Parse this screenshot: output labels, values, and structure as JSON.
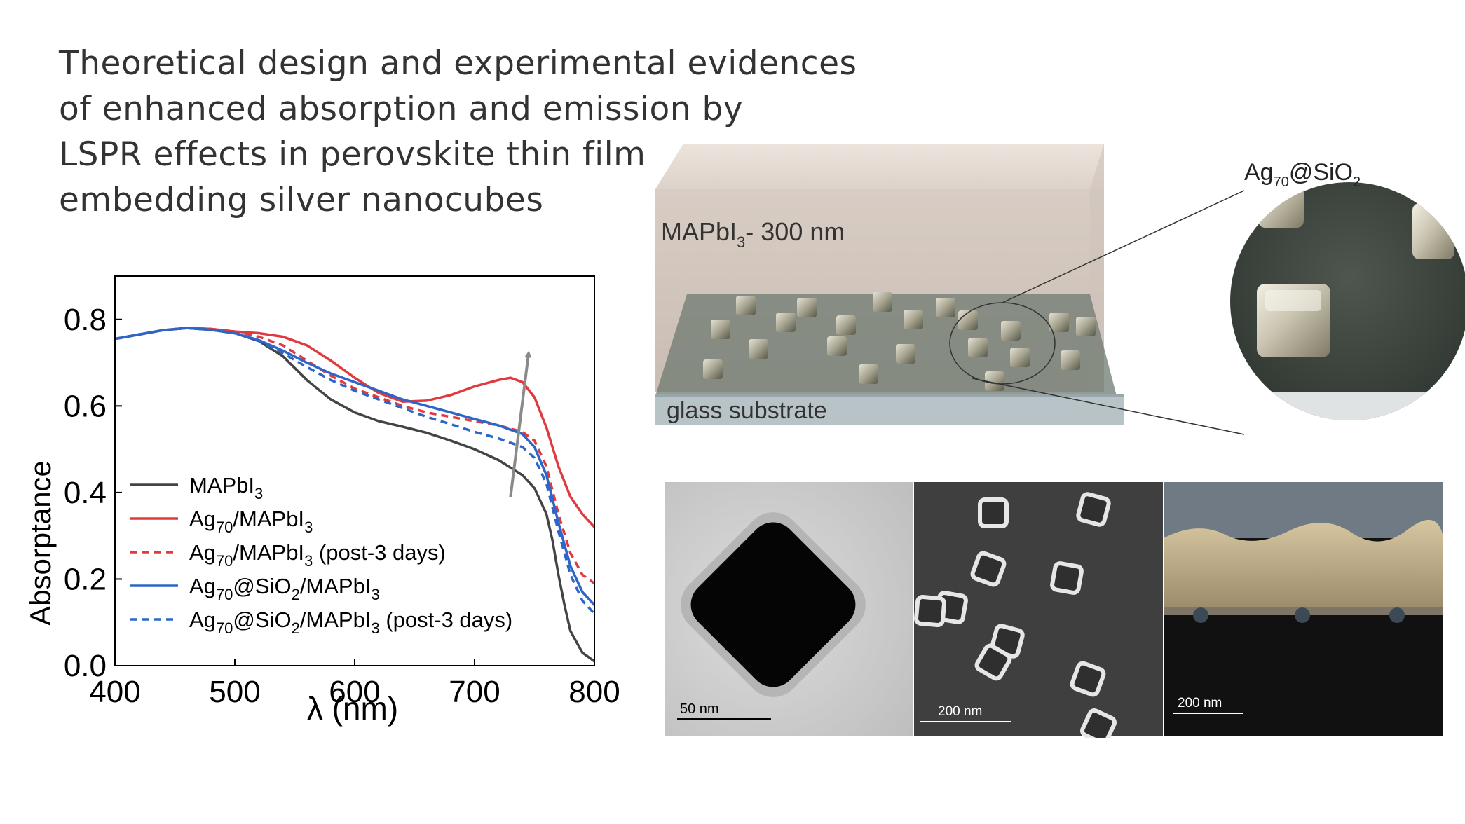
{
  "header": {
    "title_lines": [
      "Theoretical design and experimental evidences",
      "of enhanced absorption and emission by",
      "LSPR effects in perovskite thin film",
      "embedding silver nanocubes"
    ]
  },
  "chart_data": {
    "type": "line",
    "xlabel": "λ (nm)",
    "ylabel": "Absorptance",
    "xlim": [
      400,
      800
    ],
    "ylim": [
      0.0,
      0.9
    ],
    "xticks": [
      400,
      500,
      600,
      700,
      800
    ],
    "yticks": [
      0.0,
      0.2,
      0.4,
      0.6,
      0.8
    ],
    "xtick_labels": [
      "400",
      "500",
      "600",
      "700",
      "800"
    ],
    "ytick_labels": [
      "0.0",
      "0.2",
      "0.4",
      "0.6",
      "0.8"
    ],
    "grid": false,
    "legend_position": "bottom-left",
    "arrow": {
      "from": [
        730,
        0.39
      ],
      "to": [
        745,
        0.72
      ],
      "color": "#8a8a8a"
    },
    "series": [
      {
        "key": "mapbi3",
        "color": "#444444",
        "dash": "solid",
        "legend": {
          "base": "MAPbI",
          "sub": "3",
          "rest": ""
        },
        "x": [
          400,
          420,
          440,
          460,
          480,
          500,
          520,
          540,
          560,
          580,
          600,
          620,
          640,
          660,
          680,
          700,
          720,
          740,
          750,
          760,
          765,
          770,
          775,
          780,
          790,
          800
        ],
        "y": [
          0.755,
          0.765,
          0.775,
          0.78,
          0.776,
          0.768,
          0.75,
          0.715,
          0.66,
          0.615,
          0.585,
          0.565,
          0.552,
          0.538,
          0.52,
          0.5,
          0.475,
          0.44,
          0.41,
          0.35,
          0.29,
          0.21,
          0.14,
          0.08,
          0.03,
          0.01
        ]
      },
      {
        "key": "ag70",
        "color": "#e03a3e",
        "dash": "solid",
        "legend": {
          "base": "Ag",
          "sub": "70",
          "rest": "/MAPbI",
          "sub2": "3",
          "tail": ""
        },
        "x": [
          400,
          420,
          440,
          460,
          480,
          500,
          520,
          540,
          560,
          580,
          600,
          620,
          640,
          660,
          680,
          700,
          720,
          730,
          740,
          750,
          760,
          770,
          780,
          790,
          800
        ],
        "y": [
          0.755,
          0.765,
          0.775,
          0.78,
          0.778,
          0.772,
          0.768,
          0.76,
          0.74,
          0.705,
          0.665,
          0.63,
          0.61,
          0.612,
          0.625,
          0.645,
          0.66,
          0.665,
          0.655,
          0.62,
          0.55,
          0.46,
          0.39,
          0.35,
          0.32
        ]
      },
      {
        "key": "ag70_post",
        "color": "#e03a3e",
        "dash": "dashed",
        "legend": {
          "base": "Ag",
          "sub": "70",
          "rest": "/MAPbI",
          "sub2": "3",
          "tail": " (post-3 days)"
        },
        "x": [
          400,
          420,
          440,
          460,
          480,
          500,
          520,
          540,
          560,
          580,
          600,
          620,
          640,
          660,
          680,
          700,
          720,
          740,
          750,
          760,
          770,
          780,
          790,
          800
        ],
        "y": [
          0.755,
          0.765,
          0.775,
          0.78,
          0.778,
          0.772,
          0.76,
          0.74,
          0.705,
          0.67,
          0.64,
          0.62,
          0.6,
          0.585,
          0.575,
          0.565,
          0.555,
          0.54,
          0.52,
          0.46,
          0.35,
          0.26,
          0.21,
          0.19
        ]
      },
      {
        "key": "agsio2",
        "color": "#2d66c9",
        "dash": "solid",
        "legend": {
          "base": "Ag",
          "sub": "70",
          "rest": "@SiO",
          "sub2": "2",
          "tail": "/MAPbI",
          "sub3": "3",
          "tail2": ""
        },
        "x": [
          400,
          420,
          440,
          460,
          480,
          500,
          520,
          540,
          560,
          580,
          600,
          620,
          640,
          660,
          680,
          700,
          720,
          740,
          750,
          760,
          770,
          780,
          790,
          800
        ],
        "y": [
          0.755,
          0.765,
          0.775,
          0.78,
          0.776,
          0.768,
          0.752,
          0.728,
          0.7,
          0.675,
          0.655,
          0.635,
          0.615,
          0.6,
          0.585,
          0.57,
          0.555,
          0.535,
          0.505,
          0.44,
          0.33,
          0.23,
          0.17,
          0.14
        ]
      },
      {
        "key": "agsio2_post",
        "color": "#2d66c9",
        "dash": "dashed",
        "legend": {
          "base": "Ag",
          "sub": "70",
          "rest": "@SiO",
          "sub2": "2",
          "tail": "/MAPbI",
          "sub3": "3",
          "tail2": " (post-3 days)"
        },
        "x": [
          400,
          420,
          440,
          460,
          480,
          500,
          520,
          540,
          560,
          580,
          600,
          620,
          640,
          660,
          680,
          700,
          720,
          740,
          750,
          760,
          770,
          780,
          790,
          800
        ],
        "y": [
          0.755,
          0.765,
          0.775,
          0.78,
          0.776,
          0.768,
          0.75,
          0.722,
          0.69,
          0.66,
          0.635,
          0.615,
          0.595,
          0.575,
          0.558,
          0.54,
          0.525,
          0.505,
          0.48,
          0.42,
          0.31,
          0.21,
          0.15,
          0.12
        ]
      }
    ]
  },
  "schematic": {
    "film_label": {
      "base": "MAPbI",
      "sub": "3",
      "rest": "- 300 nm"
    },
    "substrate_label": "glass substrate",
    "zoom_label": {
      "base": "Ag",
      "sub": "70",
      "rest": "@SiO",
      "sub2": "2"
    }
  },
  "micrographs": {
    "tem_scale": "50  nm",
    "sem_scale": "200 nm",
    "cross_section_scale": "200 nm"
  }
}
